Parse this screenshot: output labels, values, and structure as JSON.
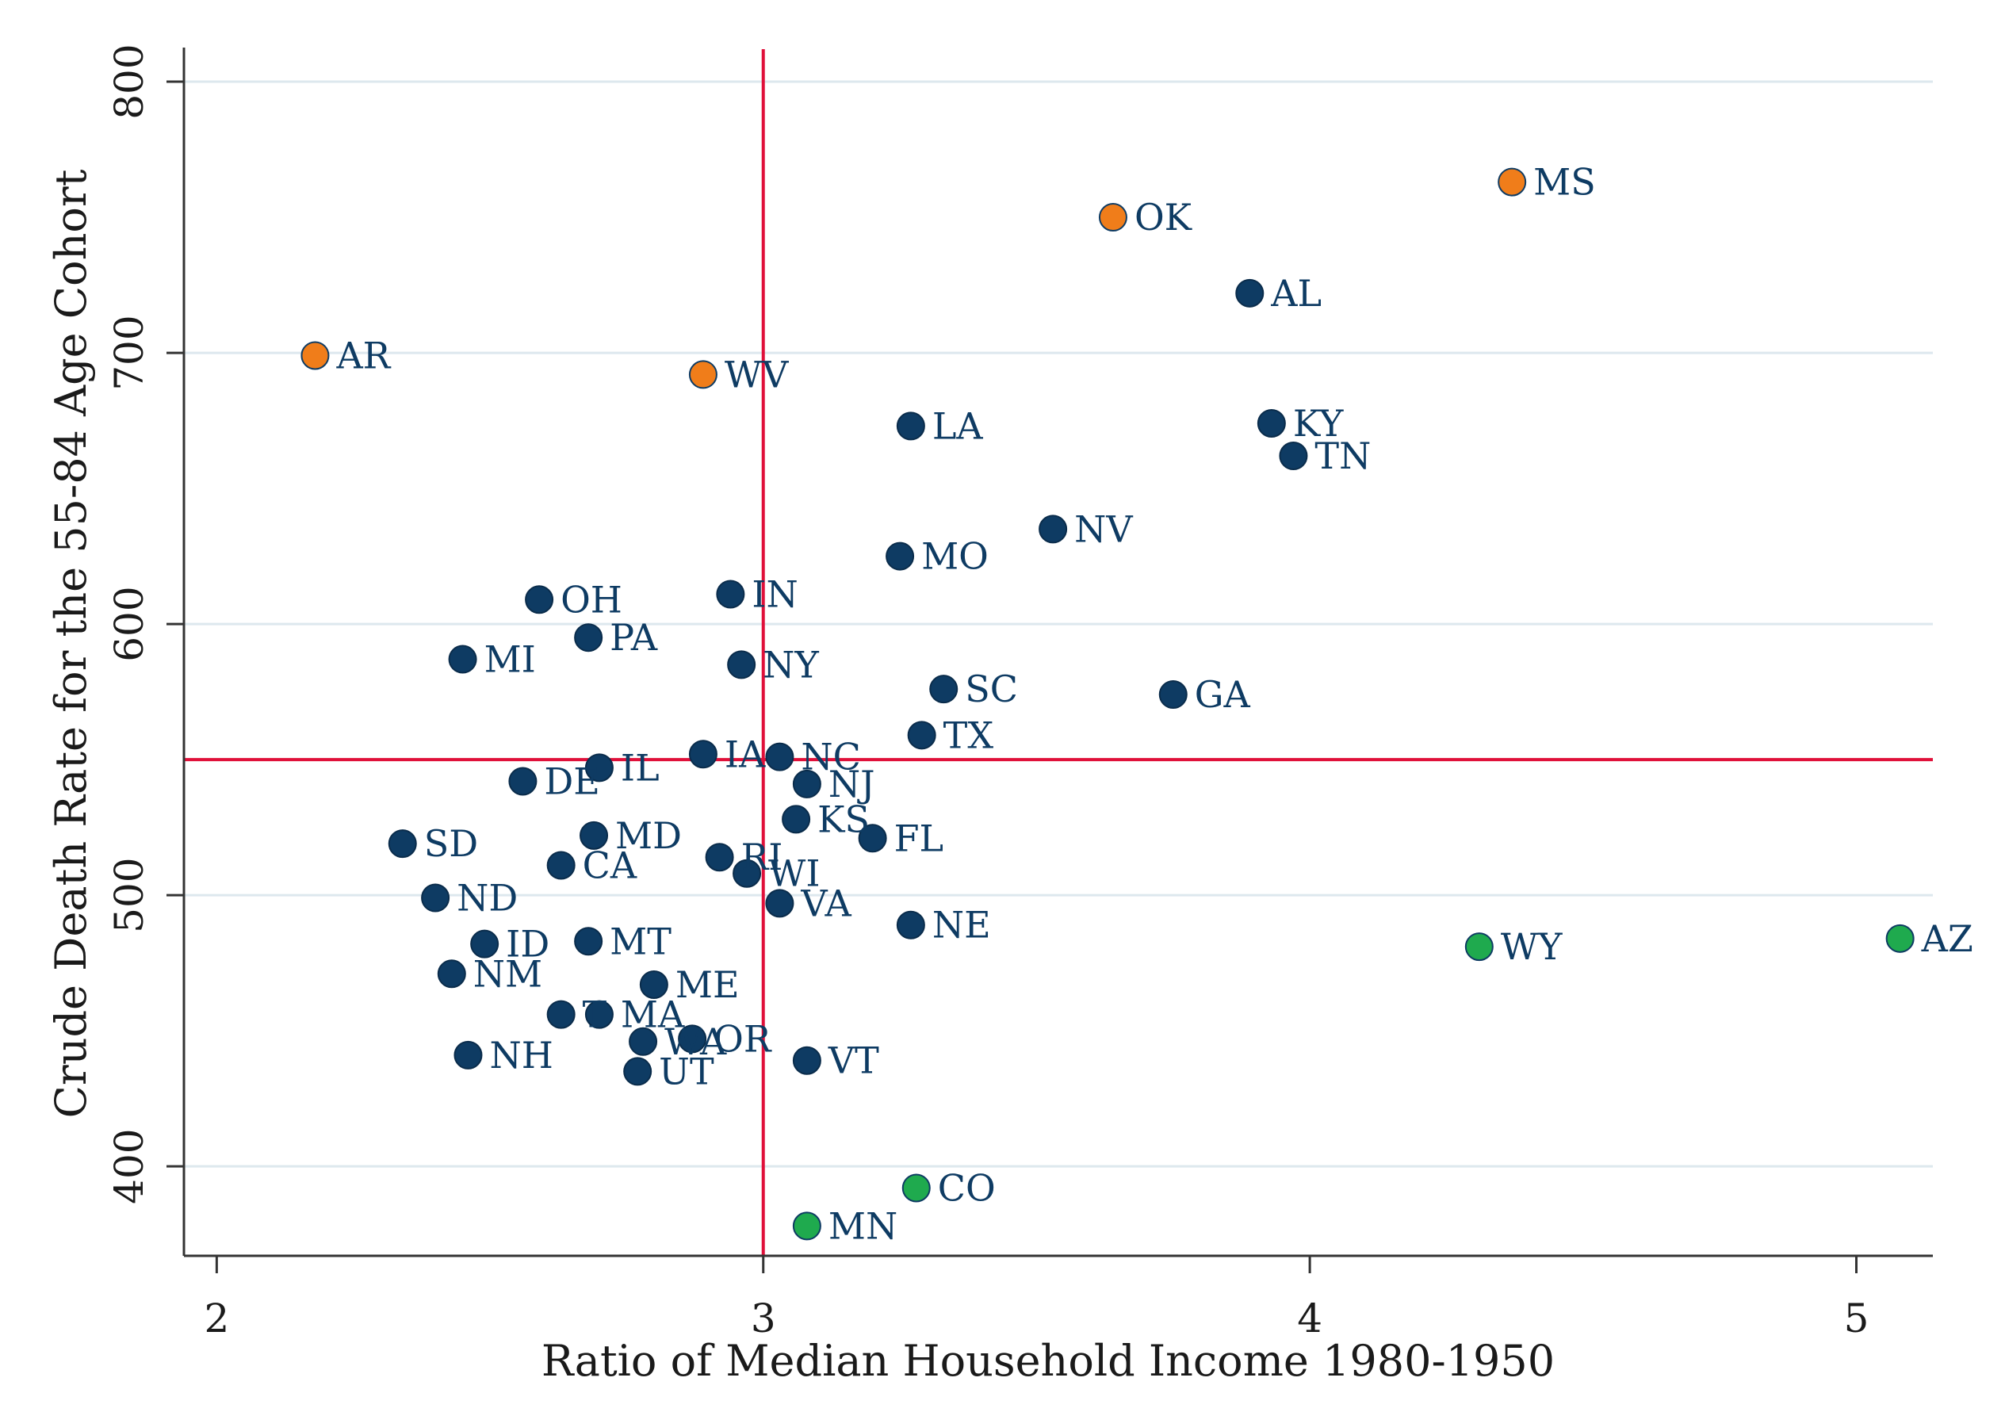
{
  "chart_data": {
    "type": "scatter",
    "title": "",
    "xlabel": "Ratio of Median Household Income 1980-1950",
    "ylabel": "Crude Death Rate for the 55-84 Age Cohort",
    "xlim": [
      1.94,
      5.14
    ],
    "ylim": [
      367,
      812
    ],
    "xticks": [
      2,
      3,
      4,
      5
    ],
    "yticks": [
      400,
      500,
      600,
      700,
      800
    ],
    "grid": true,
    "reference_lines": {
      "x": 3.0,
      "y": 550,
      "color": "#e0103a"
    },
    "colors": {
      "default": "#0e3b63",
      "orange": "#f07d1a",
      "green": "#1faa4e",
      "grid": "#dde8ee",
      "axis": "#333333"
    },
    "points": [
      {
        "label": "AR",
        "x": 2.18,
        "y": 699,
        "group": "orange"
      },
      {
        "label": "WV",
        "x": 2.89,
        "y": 692,
        "group": "orange"
      },
      {
        "label": "OK",
        "x": 3.64,
        "y": 750,
        "group": "orange"
      },
      {
        "label": "MS",
        "x": 4.37,
        "y": 763,
        "group": "orange"
      },
      {
        "label": "AL",
        "x": 3.89,
        "y": 722,
        "group": "default"
      },
      {
        "label": "LA",
        "x": 3.27,
        "y": 673,
        "group": "default"
      },
      {
        "label": "KY",
        "x": 3.93,
        "y": 674,
        "group": "default"
      },
      {
        "label": "TN",
        "x": 3.97,
        "y": 662,
        "group": "default"
      },
      {
        "label": "NV",
        "x": 3.53,
        "y": 635,
        "group": "default"
      },
      {
        "label": "MO",
        "x": 3.25,
        "y": 625,
        "group": "default"
      },
      {
        "label": "IN",
        "x": 2.94,
        "y": 611,
        "group": "default"
      },
      {
        "label": "OH",
        "x": 2.59,
        "y": 609,
        "group": "default"
      },
      {
        "label": "PA",
        "x": 2.68,
        "y": 595,
        "group": "default"
      },
      {
        "label": "MI",
        "x": 2.45,
        "y": 587,
        "group": "default"
      },
      {
        "label": "NY",
        "x": 2.96,
        "y": 585,
        "group": "default"
      },
      {
        "label": "SC",
        "x": 3.33,
        "y": 576,
        "group": "default"
      },
      {
        "label": "GA",
        "x": 3.75,
        "y": 574,
        "group": "default"
      },
      {
        "label": "TX",
        "x": 3.29,
        "y": 559,
        "group": "default"
      },
      {
        "label": "IA",
        "x": 2.89,
        "y": 552,
        "group": "default"
      },
      {
        "label": "NC",
        "x": 3.03,
        "y": 551,
        "group": "default"
      },
      {
        "label": "IL",
        "x": 2.7,
        "y": 547,
        "group": "default"
      },
      {
        "label": "DE",
        "x": 2.56,
        "y": 542,
        "group": "default"
      },
      {
        "label": "NJ",
        "x": 3.08,
        "y": 541,
        "group": "default"
      },
      {
        "label": "KS",
        "x": 3.06,
        "y": 528,
        "group": "default"
      },
      {
        "label": "FL",
        "x": 3.2,
        "y": 521,
        "group": "default"
      },
      {
        "label": "MD",
        "x": 2.69,
        "y": 522,
        "group": "default"
      },
      {
        "label": "SD",
        "x": 2.34,
        "y": 519,
        "group": "default"
      },
      {
        "label": "RI",
        "x": 2.92,
        "y": 514,
        "group": "default"
      },
      {
        "label": "CA",
        "x": 2.63,
        "y": 511,
        "group": "default"
      },
      {
        "label": "WI",
        "x": 2.97,
        "y": 508,
        "group": "default"
      },
      {
        "label": "ND",
        "x": 2.4,
        "y": 499,
        "group": "default"
      },
      {
        "label": "VA",
        "x": 3.03,
        "y": 497,
        "group": "default"
      },
      {
        "label": "NE",
        "x": 3.27,
        "y": 489,
        "group": "default"
      },
      {
        "label": "ID",
        "x": 2.49,
        "y": 482,
        "group": "default"
      },
      {
        "label": "MT",
        "x": 2.68,
        "y": 483,
        "group": "default"
      },
      {
        "label": "NM",
        "x": 2.43,
        "y": 471,
        "group": "default"
      },
      {
        "label": "ME",
        "x": 2.8,
        "y": 467,
        "group": "default"
      },
      {
        "label": "T",
        "x": 2.63,
        "y": 456,
        "group": "default"
      },
      {
        "label": "MA",
        "x": 2.7,
        "y": 456,
        "group": "default"
      },
      {
        "label": "WA",
        "x": 2.78,
        "y": 446,
        "group": "default"
      },
      {
        "label": "OR",
        "x": 2.87,
        "y": 447,
        "group": "default"
      },
      {
        "label": "NH",
        "x": 2.46,
        "y": 441,
        "group": "default"
      },
      {
        "label": "VT",
        "x": 3.08,
        "y": 439,
        "group": "default"
      },
      {
        "label": "UT",
        "x": 2.77,
        "y": 435,
        "group": "default"
      },
      {
        "label": "WY",
        "x": 4.31,
        "y": 481,
        "group": "green"
      },
      {
        "label": "AZ",
        "x": 5.08,
        "y": 484,
        "group": "green"
      },
      {
        "label": "CO",
        "x": 3.28,
        "y": 392,
        "group": "green"
      },
      {
        "label": "MN",
        "x": 3.08,
        "y": 378,
        "group": "green"
      }
    ]
  }
}
